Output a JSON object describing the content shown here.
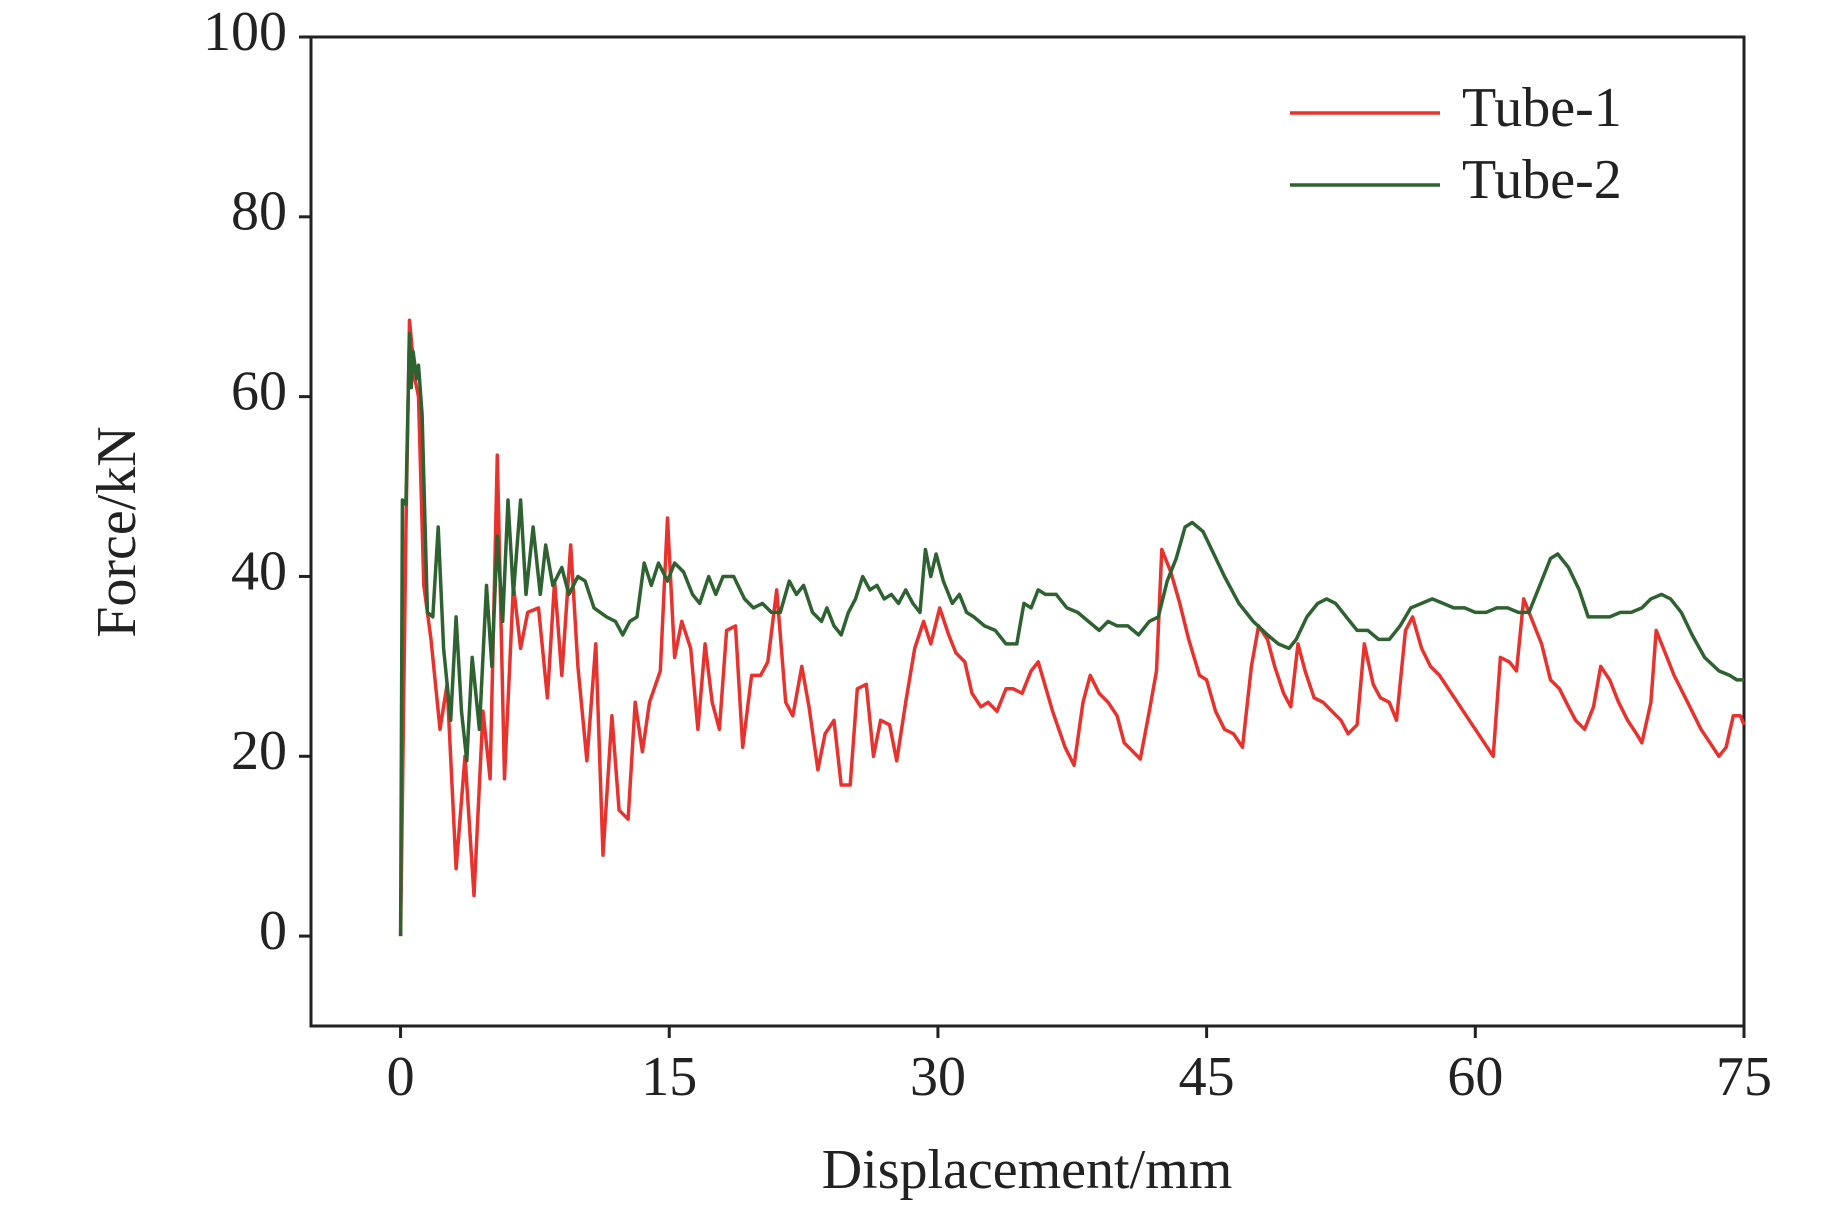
{
  "chart_data": {
    "type": "line",
    "xlabel": "Displacement/mm",
    "ylabel": "Force/kN",
    "xlim": [
      -5,
      75
    ],
    "xticks": [
      0,
      15,
      30,
      45,
      60,
      75
    ],
    "ylim": [
      -10,
      100
    ],
    "yticks": [
      0,
      20,
      40,
      60,
      80,
      100
    ],
    "legend": "upper right",
    "series": [
      {
        "name": "Tube-1",
        "color": "#e8322e",
        "x": [
          0,
          0.3,
          0.5,
          0.8,
          1.0,
          1.3,
          1.7,
          2.2,
          2.6,
          3.1,
          3.6,
          4.1,
          4.6,
          5.0,
          5.4,
          5.8,
          6.3,
          6.7,
          7.1,
          7.7,
          8.2,
          8.6,
          9.0,
          9.5,
          9.9,
          10.4,
          10.9,
          11.3,
          11.8,
          12.2,
          12.7,
          13.1,
          13.5,
          13.9,
          14.5,
          14.9,
          15.3,
          15.7,
          16.2,
          16.6,
          17.0,
          17.4,
          17.8,
          18.2,
          18.7,
          19.1,
          19.6,
          20.1,
          20.5,
          21.0,
          21.5,
          21.9,
          22.4,
          22.8,
          23.3,
          23.7,
          24.2,
          24.6,
          25.1,
          25.5,
          26.0,
          26.4,
          26.8,
          27.3,
          27.7,
          28.2,
          28.7,
          29.2,
          29.6,
          30.1,
          30.6,
          31.0,
          31.5,
          31.9,
          32.4,
          32.8,
          33.3,
          33.8,
          34.2,
          34.7,
          35.2,
          35.6,
          36.4,
          37.1,
          37.6,
          38.1,
          38.5,
          39.0,
          39.5,
          40.0,
          40.4,
          40.9,
          41.3,
          41.8,
          42.2,
          42.5,
          43.0,
          43.5,
          44.0,
          44.6,
          45.0,
          45.5,
          46.0,
          46.5,
          47.0,
          47.5,
          47.9,
          48.4,
          48.8,
          49.3,
          49.7,
          50.1,
          50.5,
          51.0,
          51.5,
          52.0,
          52.5,
          52.9,
          53.4,
          53.8,
          54.3,
          54.7,
          55.2,
          55.6,
          56.1,
          56.5,
          57.0,
          57.5,
          58.0,
          59.0,
          60.0,
          60.5,
          61.0,
          61.4,
          61.9,
          62.3,
          62.7,
          63.2,
          63.7,
          64.2,
          64.7,
          65.2,
          65.6,
          66.1,
          66.6,
          67.0,
          67.5,
          68.0,
          68.5,
          69.0,
          69.3,
          69.8,
          70.1,
          70.6,
          71.1,
          71.6,
          72.1,
          72.6,
          73.1,
          73.6,
          74.0,
          74.4,
          74.8,
          75
        ],
        "values": [
          0,
          45,
          68.5,
          62,
          60,
          39,
          33,
          23,
          28,
          7.5,
          20,
          4.5,
          25,
          17.5,
          53.5,
          17.5,
          39,
          32,
          36,
          36.5,
          26.5,
          39.5,
          29,
          43.5,
          30,
          19.5,
          32.5,
          9,
          24.5,
          14,
          13,
          26,
          20.5,
          26,
          29.5,
          46.5,
          31,
          35,
          32,
          23,
          32.5,
          26,
          23,
          34,
          34.5,
          21,
          29,
          29,
          30.5,
          38.5,
          26,
          24.5,
          30,
          25.5,
          18.5,
          22.5,
          24,
          16.8,
          16.8,
          27.5,
          28,
          20,
          24,
          23.5,
          19.5,
          26,
          32,
          35,
          32.5,
          36.5,
          33.5,
          31.5,
          30.5,
          27,
          25.5,
          26,
          25,
          27.5,
          27.5,
          27,
          29.5,
          30.5,
          25,
          21,
          19,
          26,
          29,
          27,
          26,
          24.5,
          21.5,
          20.5,
          19.7,
          25,
          29.5,
          43,
          40.5,
          37,
          33,
          29,
          28.5,
          25,
          23,
          22.5,
          21,
          30,
          34.5,
          33,
          30,
          27,
          25.5,
          32.5,
          29.5,
          26.5,
          26,
          25,
          24,
          22.5,
          23.5,
          32.5,
          28,
          26.5,
          26,
          24,
          34,
          35.5,
          32,
          30,
          29,
          26,
          23,
          21.5,
          20,
          31,
          30.5,
          29.5,
          37.5,
          35,
          32.5,
          28.5,
          27.5,
          25.5,
          24,
          23,
          25.5,
          30,
          28.5,
          26,
          24,
          22.5,
          21.5,
          26,
          34,
          31.5,
          29,
          27,
          25,
          23,
          21.5,
          20,
          21,
          24.5,
          24.5,
          23.5
        ]
      },
      {
        "name": "Tube-2",
        "color": "#2e6331",
        "x": [
          0,
          0.1,
          0.3,
          0.5,
          0.6,
          0.7,
          0.9,
          1.0,
          1.2,
          1.5,
          1.8,
          2.1,
          2.4,
          2.8,
          3.1,
          3.4,
          3.7,
          4.0,
          4.4,
          4.8,
          5.1,
          5.4,
          5.7,
          6.0,
          6.3,
          6.7,
          7.0,
          7.4,
          7.8,
          8.1,
          8.5,
          9.0,
          9.4,
          9.9,
          10.3,
          10.8,
          11.5,
          12.0,
          12.4,
          12.8,
          13.2,
          13.6,
          14.0,
          14.4,
          14.9,
          15.3,
          15.8,
          16.3,
          16.7,
          17.2,
          17.6,
          18.0,
          18.6,
          19.2,
          19.7,
          20.2,
          20.7,
          21.2,
          21.7,
          22.1,
          22.5,
          23.0,
          23.5,
          23.8,
          24.2,
          24.6,
          25.0,
          25.4,
          25.8,
          26.2,
          26.6,
          27.0,
          27.4,
          27.8,
          28.2,
          28.6,
          29.0,
          29.3,
          29.6,
          29.9,
          30.3,
          30.8,
          31.2,
          31.6,
          32.0,
          32.6,
          33.2,
          33.8,
          34.4,
          34.8,
          35.2,
          35.6,
          36.0,
          36.6,
          37.2,
          37.8,
          38.4,
          39.0,
          39.5,
          40.0,
          40.6,
          41.2,
          41.8,
          42.3,
          42.8,
          43.3,
          43.8,
          44.2,
          44.8,
          45.4,
          46.0,
          46.8,
          47.6,
          48.4,
          49.0,
          49.6,
          50.0,
          50.6,
          51.2,
          51.7,
          52.2,
          52.8,
          53.4,
          54.0,
          54.6,
          55.2,
          55.8,
          56.4,
          57.0,
          57.6,
          58.2,
          58.8,
          59.4,
          60.0,
          60.6,
          61.2,
          61.8,
          62.4,
          63.0,
          63.6,
          64.2,
          64.6,
          65.2,
          65.8,
          66.3,
          66.9,
          67.5,
          68.1,
          68.7,
          69.3,
          69.8,
          70.4,
          70.9,
          71.5,
          72.1,
          72.8,
          73.6,
          74.2,
          74.6,
          75
        ],
        "values": [
          0,
          48.5,
          48,
          67,
          61,
          65,
          62,
          63.5,
          58,
          36,
          35.5,
          45.5,
          32,
          24,
          35.5,
          25,
          19.5,
          31,
          23,
          39,
          30,
          44.5,
          35,
          48.5,
          38,
          48.5,
          38,
          45.5,
          38,
          43.5,
          39,
          41,
          38,
          40,
          39.5,
          36.5,
          35.5,
          35,
          33.5,
          35,
          35.5,
          41.5,
          39,
          41.5,
          39.5,
          41.5,
          40.5,
          38,
          37,
          40,
          38,
          40,
          40,
          37.5,
          36.5,
          37,
          36,
          36,
          39.5,
          38,
          39,
          36,
          35,
          36.5,
          34.5,
          33.5,
          36,
          37.5,
          40,
          38.5,
          39,
          37.5,
          38,
          37,
          38.5,
          37,
          36,
          43,
          40,
          42.5,
          39.5,
          37,
          38,
          36,
          35.5,
          34.5,
          34,
          32.5,
          32.5,
          37,
          36.5,
          38.5,
          38,
          38,
          36.5,
          36,
          35,
          34,
          35,
          34.5,
          34.5,
          33.5,
          35,
          35.5,
          39.5,
          42,
          45.5,
          46,
          45,
          42.5,
          40,
          37,
          35,
          33.5,
          32.5,
          32,
          33,
          35.5,
          37,
          37.5,
          37,
          35.5,
          34,
          34,
          33,
          33,
          34.5,
          36.5,
          37,
          37.5,
          37,
          36.5,
          36.5,
          36,
          36,
          36.5,
          36.5,
          36,
          36,
          39,
          42,
          42.5,
          41,
          38.5,
          35.5,
          35.5,
          35.5,
          36,
          36,
          36.5,
          37.5,
          38,
          37.5,
          36,
          33.5,
          31,
          29.5,
          29,
          28.5,
          28.5
        ]
      }
    ]
  }
}
